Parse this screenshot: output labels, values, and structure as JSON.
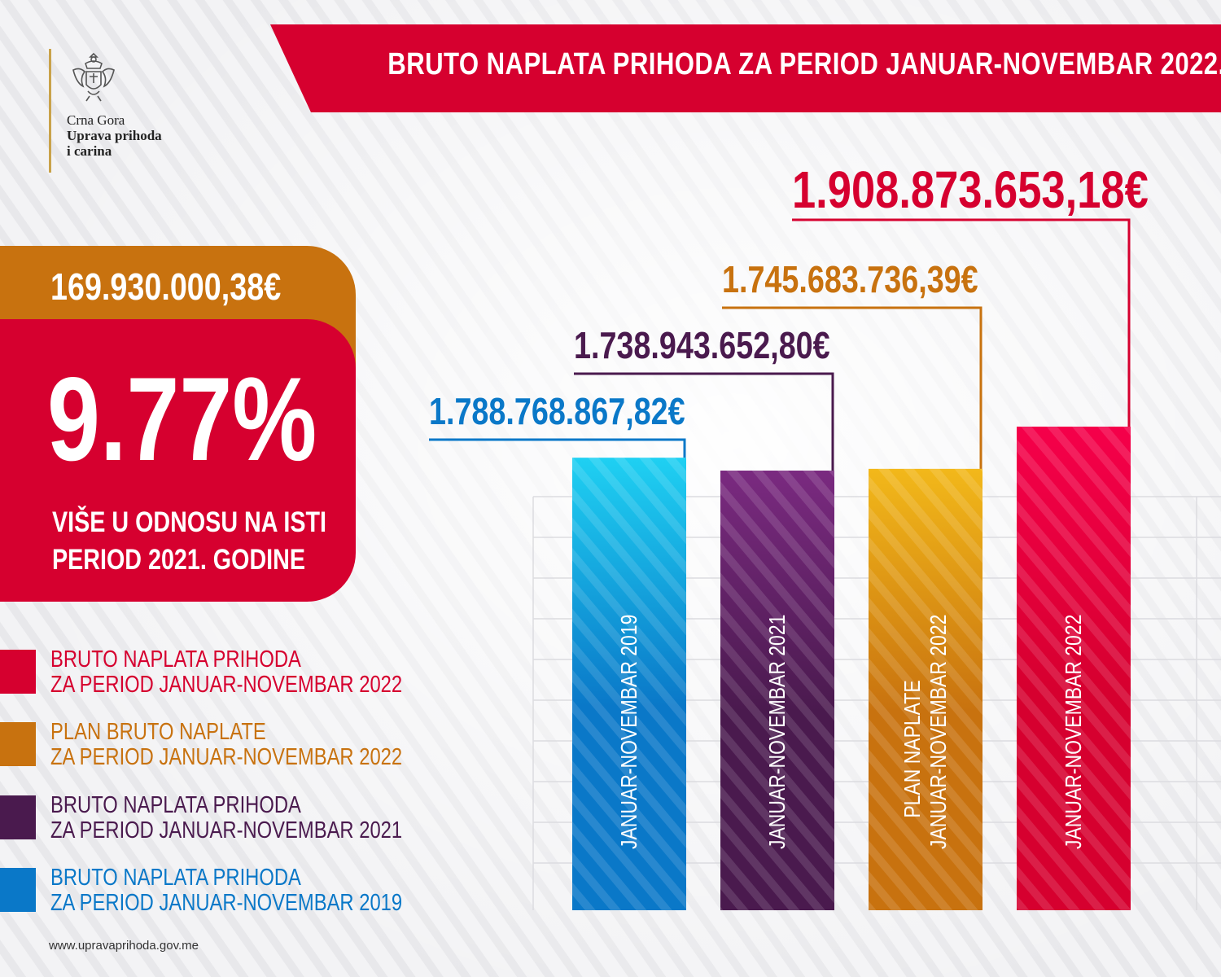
{
  "logo": {
    "country": "Crna Gora",
    "org_line1": "Uprava prihoda",
    "org_line2": "i carina"
  },
  "title": "BRUTO NAPLATA PRIHODA ZA PERIOD JANUAR-NOVEMBAR 2022.",
  "summary": {
    "difference": "169.930.000,38€",
    "percent": "9.77%",
    "desc_line1": "VIŠE U ODNOSU NA ISTI",
    "desc_line2": "PERIOD 2021. GODINE"
  },
  "legend": [
    {
      "line1": "BRUTO NAPLATA PRIHODA",
      "line2": "ZA PERIOD JANUAR-NOVEMBAR 2022",
      "color": "#d6002f"
    },
    {
      "line1": "PLAN BRUTO NAPLATE",
      "line2": "ZA PERIOD JANUAR-NOVEMBAR 2022",
      "color": "#c8720f"
    },
    {
      "line1": "BRUTO NAPLATA PRIHODA",
      "line2": "ZA PERIOD JANUAR-NOVEMBAR 2021",
      "color": "#4a1a4e"
    },
    {
      "line1": "BRUTO NAPLATA PRIHODA",
      "line2": "ZA PERIOD JANUAR-NOVEMBAR 2019",
      "color": "#0a78c8"
    }
  ],
  "footer": "www.upravaprihoda.gov.me",
  "chart_data": {
    "type": "bar",
    "categories": [
      "JANUAR-NOVEMBAR 2019",
      "JANUAR-NOVEMBAR 2021",
      "PLAN NAPLATE JANUAR-NOVEMBAR 2022",
      "JANUAR-NOVEMBAR 2022"
    ],
    "bar_labels": [
      [
        "JANUAR-NOVEMBAR 2019"
      ],
      [
        "JANUAR-NOVEMBAR 2021"
      ],
      [
        "PLAN NAPLATE",
        "JANUAR-NOVEMBAR 2022"
      ],
      [
        "JANUAR-NOVEMBAR 2022"
      ]
    ],
    "values": [
      1788768867.82,
      1738943652.8,
      1745683736.39,
      1908873653.18
    ],
    "value_labels": [
      "1.788.768.867,82€",
      "1.738.943.652,80€",
      "1.745.683.736,39€",
      "1.908.873.653,18€"
    ],
    "colors": [
      "#0a78c8",
      "#4a1a4e",
      "#c8720f",
      "#d6002f"
    ],
    "highlight_colors": [
      "#1fd0f2",
      "#7a2a80",
      "#f2b81a",
      "#f5004a"
    ],
    "title": "",
    "xlabel": "",
    "ylabel": "",
    "grid": true
  }
}
